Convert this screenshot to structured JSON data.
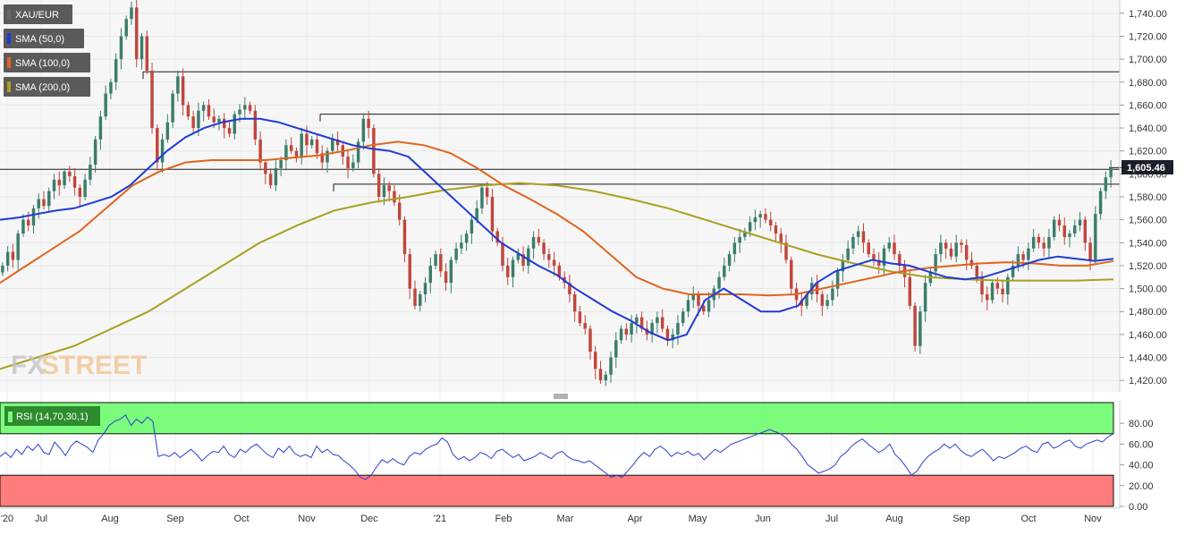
{
  "instrument": "XAU/EUR",
  "watermark": "FXSTREET",
  "last_price": "1,605.46",
  "legend": [
    {
      "label": "XAU/EUR",
      "color": "#5f6b6b"
    },
    {
      "label": "SMA (50,0)",
      "color": "#1f3bd6"
    },
    {
      "label": "SMA (100,0)",
      "color": "#e0641c"
    },
    {
      "label": "SMA (200,0)",
      "color": "#a8a020"
    }
  ],
  "rsi": {
    "label": "RSI (14,70,30,1)",
    "overbought": 70,
    "oversold": 30,
    "ticks": [
      "80.00",
      "60.00",
      "40.00",
      "20.00",
      "0.00"
    ],
    "values": [
      48,
      52,
      47,
      55,
      50,
      58,
      54,
      60,
      52,
      50,
      62,
      56,
      49,
      58,
      63,
      60,
      57,
      52,
      64,
      70,
      78,
      82,
      84,
      88,
      78,
      84,
      80,
      86,
      82,
      48,
      50,
      48,
      52,
      47,
      51,
      55,
      50,
      44,
      49,
      53,
      52,
      58,
      50,
      47,
      55,
      52,
      57,
      60,
      55,
      50,
      47,
      56,
      52,
      58,
      51,
      48,
      50,
      47,
      58,
      52,
      55,
      50,
      49,
      44,
      40,
      35,
      28,
      26,
      30,
      38,
      45,
      42,
      46,
      42,
      40,
      48,
      52,
      50,
      55,
      58,
      60,
      66,
      62,
      50,
      45,
      48,
      44,
      47,
      52,
      50,
      46,
      53,
      55,
      51,
      47,
      50,
      44,
      46,
      48,
      52,
      49,
      46,
      51,
      53,
      48,
      45,
      44,
      42,
      44,
      40,
      36,
      32,
      28,
      30,
      28,
      34,
      40,
      47,
      52,
      48,
      55,
      58,
      54,
      48,
      52,
      50,
      53,
      49,
      51,
      45,
      50,
      55,
      52,
      56,
      60,
      62,
      64,
      66,
      68,
      70,
      72,
      74,
      72,
      70,
      66,
      60,
      55,
      48,
      40,
      36,
      32,
      34,
      36,
      40,
      48,
      52,
      58,
      62,
      65,
      60,
      56,
      52,
      55,
      60,
      50,
      45,
      38,
      30,
      34,
      42,
      48,
      52,
      55,
      60,
      56,
      60,
      54,
      50,
      48,
      52,
      55,
      50,
      44,
      48,
      46,
      49,
      52,
      56,
      58,
      54,
      52,
      60,
      62,
      56,
      58,
      62,
      64,
      58,
      56,
      60,
      62,
      64,
      62,
      67,
      70
    ]
  },
  "chart_data": {
    "type": "candlestick",
    "title": "XAU/EUR",
    "ylim": [
      1410,
      1750
    ],
    "y_ticks": [
      1420,
      1440,
      1460,
      1480,
      1500,
      1520,
      1540,
      1560,
      1580,
      1600,
      1620,
      1640,
      1660,
      1680,
      1700,
      1720,
      1740
    ],
    "y_tick_labels": [
      "1,420.00",
      "1,440.00",
      "1,460.00",
      "1,480.00",
      "1,500.00",
      "1,520.00",
      "1,540.00",
      "1,560.00",
      "1,580.00",
      "1,600.00",
      "1,620.00",
      "1,640.00",
      "1,660.00",
      "1,680.00",
      "1,700.00",
      "1,720.00",
      "1,740.00"
    ],
    "x_labels": [
      "'20",
      "Jul",
      "Aug",
      "Sep",
      "Oct",
      "Nov",
      "Dec",
      "'21",
      "Feb",
      "Mar",
      "Apr",
      "May",
      "Jun",
      "Jul",
      "Aug",
      "Sep",
      "Oct",
      "Nov"
    ],
    "last_price": 1605.46,
    "horizontal_levels": [
      1689,
      1652,
      1604,
      1591
    ],
    "close": [
      1520,
      1532,
      1525,
      1548,
      1560,
      1555,
      1570,
      1578,
      1572,
      1585,
      1595,
      1590,
      1602,
      1598,
      1588,
      1580,
      1595,
      1608,
      1630,
      1650,
      1670,
      1680,
      1700,
      1720,
      1735,
      1745,
      1700,
      1720,
      1690,
      1640,
      1610,
      1630,
      1645,
      1670,
      1685,
      1660,
      1650,
      1640,
      1655,
      1660,
      1650,
      1645,
      1648,
      1640,
      1635,
      1652,
      1656,
      1660,
      1655,
      1630,
      1610,
      1600,
      1590,
      1605,
      1612,
      1625,
      1620,
      1615,
      1635,
      1625,
      1630,
      1618,
      1610,
      1620,
      1630,
      1625,
      1615,
      1605,
      1610,
      1628,
      1648,
      1640,
      1600,
      1580,
      1590,
      1585,
      1575,
      1560,
      1530,
      1500,
      1485,
      1495,
      1505,
      1520,
      1530,
      1515,
      1505,
      1525,
      1535,
      1540,
      1548,
      1560,
      1570,
      1588,
      1580,
      1550,
      1540,
      1520,
      1510,
      1525,
      1530,
      1520,
      1535,
      1545,
      1540,
      1530,
      1525,
      1520,
      1510,
      1505,
      1495,
      1480,
      1470,
      1465,
      1445,
      1430,
      1420,
      1425,
      1440,
      1455,
      1465,
      1460,
      1470,
      1475,
      1465,
      1460,
      1470,
      1475,
      1465,
      1455,
      1460,
      1470,
      1480,
      1490,
      1495,
      1485,
      1480,
      1490,
      1500,
      1510,
      1520,
      1530,
      1540,
      1545,
      1550,
      1558,
      1562,
      1565,
      1560,
      1555,
      1548,
      1540,
      1525,
      1500,
      1490,
      1485,
      1495,
      1505,
      1495,
      1485,
      1490,
      1500,
      1515,
      1525,
      1535,
      1545,
      1550,
      1540,
      1530,
      1525,
      1520,
      1535,
      1540,
      1530,
      1520,
      1510,
      1485,
      1450,
      1480,
      1505,
      1515,
      1530,
      1540,
      1535,
      1528,
      1540,
      1538,
      1525,
      1520,
      1510,
      1495,
      1490,
      1505,
      1500,
      1495,
      1510,
      1520,
      1530,
      1525,
      1535,
      1545,
      1540,
      1535,
      1545,
      1560,
      1555,
      1545,
      1548,
      1555,
      1560,
      1540,
      1525,
      1565,
      1585,
      1597,
      1605
    ]
  },
  "sma": {
    "sma50": [
      1560,
      1562,
      1565,
      1568,
      1570,
      1575,
      1580,
      1590,
      1605,
      1620,
      1632,
      1640,
      1645,
      1648,
      1648,
      1645,
      1640,
      1635,
      1630,
      1625,
      1622,
      1620,
      1615,
      1600,
      1585,
      1570,
      1555,
      1540,
      1530,
      1520,
      1512,
      1500,
      1490,
      1480,
      1472,
      1462,
      1455,
      1460,
      1490,
      1500,
      1490,
      1480,
      1480,
      1485,
      1505,
      1515,
      1520,
      1525,
      1522,
      1520,
      1515,
      1510,
      1508,
      1510,
      1515,
      1520,
      1525,
      1528,
      1526,
      1524,
      1526
    ],
    "sma100": [
      1505,
      1520,
      1535,
      1550,
      1570,
      1590,
      1602,
      1610,
      1612,
      1612,
      1612,
      1614,
      1616,
      1620,
      1625,
      1628,
      1625,
      1618,
      1605,
      1590,
      1578,
      1565,
      1550,
      1530,
      1510,
      1500,
      1495,
      1495,
      1495,
      1494,
      1495,
      1500,
      1505,
      1510,
      1515,
      1518,
      1520,
      1522,
      1523,
      1522,
      1520,
      1520,
      1524
    ],
    "sma200": [
      1430,
      1440,
      1450,
      1465,
      1480,
      1500,
      1520,
      1540,
      1555,
      1568,
      1575,
      1580,
      1586,
      1590,
      1592,
      1590,
      1585,
      1578,
      1570,
      1560,
      1550,
      1540,
      1530,
      1522,
      1515,
      1510,
      1508,
      1507,
      1507,
      1507,
      1508
    ]
  }
}
